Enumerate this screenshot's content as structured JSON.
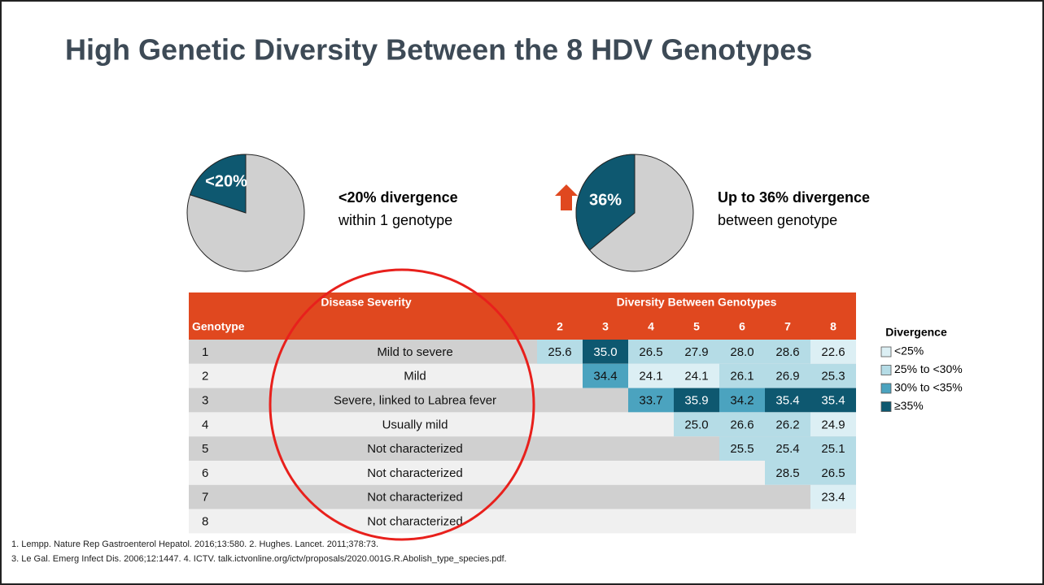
{
  "title": "High Genetic Diversity Between the 8 HDV Genotypes",
  "pies": [
    {
      "label": "<20%",
      "value": 20,
      "heading": "<20% divergence",
      "text": "within 1 genotype"
    },
    {
      "label": "36%",
      "value": 36,
      "heading": "Up to 36% divergence",
      "text": "between genotype"
    }
  ],
  "table": {
    "header": {
      "genotype": "Genotype",
      "severity": "Disease Severity",
      "diversity": "Diversity Between Genotypes",
      "columns": [
        "2",
        "3",
        "4",
        "5",
        "6",
        "7",
        "8"
      ]
    },
    "rows": [
      {
        "genotype": "1",
        "severity": "Mild to severe",
        "diversity": [
          "25.6",
          "35.0",
          "26.5",
          "27.9",
          "28.0",
          "28.6",
          "22.6"
        ]
      },
      {
        "genotype": "2",
        "severity": "Mild",
        "diversity": [
          null,
          "34.4",
          "24.1",
          "24.1",
          "26.1",
          "26.9",
          "25.3"
        ]
      },
      {
        "genotype": "3",
        "severity": "Severe, linked to Labrea fever",
        "diversity": [
          null,
          null,
          "33.7",
          "35.9",
          "34.2",
          "35.4",
          "35.4"
        ]
      },
      {
        "genotype": "4",
        "severity": "Usually mild",
        "diversity": [
          null,
          null,
          null,
          "25.0",
          "26.6",
          "26.2",
          "24.9"
        ]
      },
      {
        "genotype": "5",
        "severity": "Not characterized",
        "diversity": [
          null,
          null,
          null,
          null,
          "25.5",
          "25.4",
          "25.1"
        ]
      },
      {
        "genotype": "6",
        "severity": "Not characterized",
        "diversity": [
          null,
          null,
          null,
          null,
          null,
          "28.5",
          "26.5"
        ]
      },
      {
        "genotype": "7",
        "severity": "Not characterized",
        "diversity": [
          null,
          null,
          null,
          null,
          null,
          null,
          "23.4"
        ]
      },
      {
        "genotype": "8",
        "severity": "Not characterized",
        "diversity": [
          null,
          null,
          null,
          null,
          null,
          null,
          null
        ]
      }
    ]
  },
  "legend": {
    "title": "Divergence",
    "items": [
      {
        "label": "<25%",
        "color": "#dceff4"
      },
      {
        "label": "25% to <30%",
        "color": "#b5dce6"
      },
      {
        "label": "30% to <35%",
        "color": "#4ba3bf"
      },
      {
        "label": "≥35%",
        "color": "#0e5870"
      }
    ]
  },
  "footnotes": [
    "1. Lempp. Nature Rep Gastroenterol Hepatol. 2016;13:580. 2. Hughes. Lancet. 2011;378:73.",
    "3. Le Gal. Emerg Infect Dis. 2006;12:1447. 4. ICTV. talk.ictvonline.org/ictv/proposals/2020.001G.R.Abolish_type_species.pdf."
  ]
}
